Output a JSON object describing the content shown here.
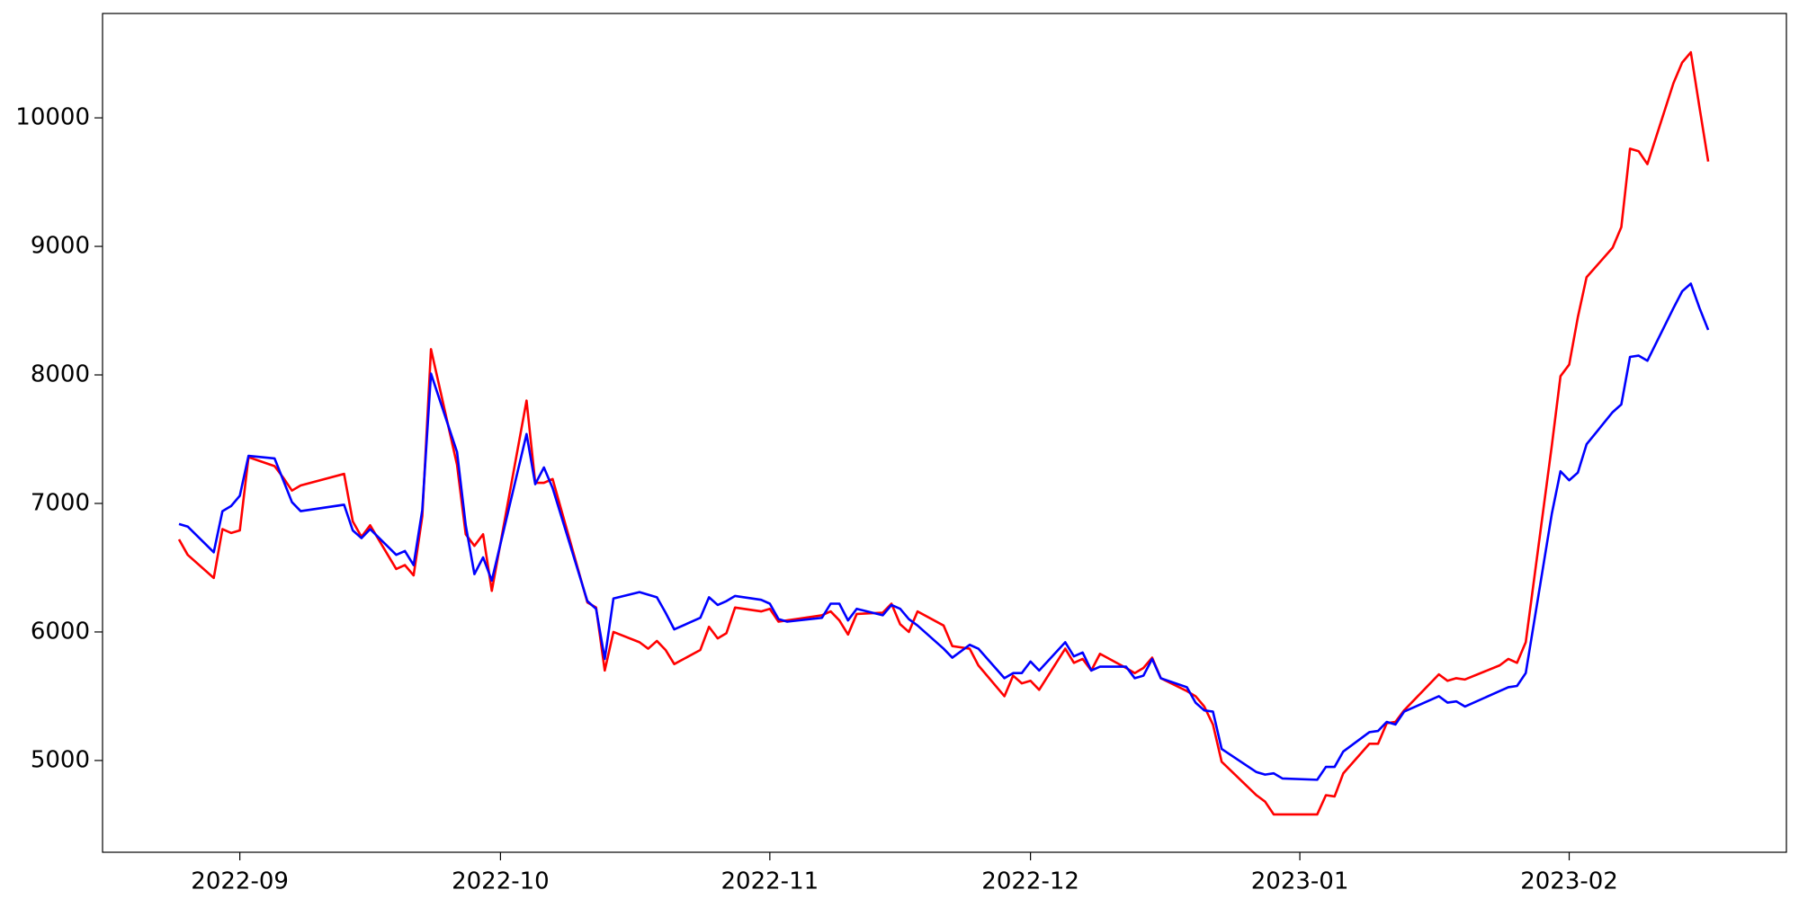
{
  "chart_data": {
    "type": "line",
    "x": [
      19229,
      19230,
      19233,
      19234,
      19235,
      19236,
      19237,
      19240,
      19241,
      19242,
      19243,
      19248,
      19249,
      19250,
      19251,
      19254,
      19255,
      19256,
      19257,
      19258,
      19261,
      19262,
      19263,
      19264,
      19265,
      19269,
      19270,
      19271,
      19272,
      19276,
      19277,
      19278,
      19279,
      19282,
      19283,
      19284,
      19285,
      19286,
      19289,
      19290,
      19291,
      19292,
      19293,
      19296,
      19297,
      19298,
      19299,
      19303,
      19304,
      19305,
      19306,
      19307,
      19310,
      19311,
      19312,
      19313,
      19314,
      19317,
      19318,
      19319,
      19320,
      19321,
      19324,
      19325,
      19326,
      19327,
      19328,
      19331,
      19332,
      19333,
      19334,
      19335,
      19338,
      19339,
      19340,
      19341,
      19342,
      19345,
      19346,
      19347,
      19348,
      19349,
      19353,
      19354,
      19355,
      19356,
      19360,
      19361,
      19362,
      19363,
      19366,
      19367,
      19368,
      19369,
      19370,
      19374,
      19375,
      19376,
      19377,
      19381,
      19382,
      19383,
      19384,
      19387,
      19388,
      19389,
      19390,
      19391,
      19394,
      19395,
      19396,
      19397,
      19398,
      19401,
      19402,
      19403,
      19404,
      19405
    ],
    "series": [
      {
        "color": "#ff0000",
        "values": [
          6720,
          6600,
          6420,
          6800,
          6770,
          6790,
          7360,
          7290,
          7200,
          7100,
          7140,
          7230,
          6860,
          6740,
          6830,
          6490,
          6520,
          6440,
          6900,
          8200,
          7300,
          6760,
          6670,
          6760,
          6320,
          7800,
          7160,
          7160,
          7190,
          6230,
          6190,
          5700,
          6000,
          5920,
          5870,
          5930,
          5860,
          5750,
          5860,
          6040,
          5950,
          5990,
          6190,
          6160,
          6180,
          6080,
          6090,
          6130,
          6160,
          6090,
          5980,
          6140,
          6150,
          6220,
          6060,
          6000,
          6160,
          6050,
          5890,
          5880,
          5870,
          5740,
          5500,
          5660,
          5600,
          5620,
          5550,
          5870,
          5760,
          5790,
          5700,
          5830,
          5720,
          5680,
          5720,
          5800,
          5640,
          5540,
          5500,
          5420,
          5280,
          4990,
          4730,
          4680,
          4580,
          4580,
          4580,
          4730,
          4720,
          4900,
          5130,
          5130,
          5290,
          5300,
          5390,
          5670,
          5620,
          5640,
          5630,
          5740,
          5790,
          5760,
          5920,
          7450,
          7990,
          8080,
          8450,
          8760,
          8990,
          9150,
          9760,
          9740,
          9640,
          10270,
          10430,
          10510,
          10080,
          9660
        ]
      },
      {
        "color": "#0000ff",
        "values": [
          6840,
          6820,
          6620,
          6940,
          6980,
          7060,
          7370,
          7350,
          7180,
          7010,
          6940,
          6990,
          6790,
          6730,
          6800,
          6600,
          6630,
          6520,
          6950,
          8010,
          7400,
          6830,
          6450,
          6580,
          6400,
          7540,
          7150,
          7280,
          7120,
          6240,
          6180,
          5790,
          6260,
          6310,
          6290,
          6270,
          6150,
          6020,
          6110,
          6270,
          6210,
          6240,
          6280,
          6250,
          6220,
          6100,
          6080,
          6110,
          6220,
          6220,
          6090,
          6180,
          6130,
          6210,
          6180,
          6100,
          6050,
          5870,
          5800,
          5850,
          5900,
          5870,
          5640,
          5680,
          5680,
          5770,
          5700,
          5920,
          5810,
          5840,
          5700,
          5730,
          5730,
          5640,
          5660,
          5790,
          5640,
          5570,
          5450,
          5390,
          5380,
          5090,
          4910,
          4890,
          4900,
          4860,
          4850,
          4950,
          4950,
          5070,
          5220,
          5230,
          5300,
          5280,
          5380,
          5500,
          5450,
          5460,
          5420,
          5540,
          5570,
          5580,
          5680,
          6920,
          7250,
          7180,
          7240,
          7460,
          7710,
          7770,
          8140,
          8150,
          8110,
          8520,
          8650,
          8710,
          8520,
          8350
        ]
      }
    ],
    "xlim": [
      19220.2,
      19414
    ],
    "ylim": [
      4286,
      10812
    ],
    "xticks": [
      {
        "value": 19236,
        "label": "2022-09"
      },
      {
        "value": 19266,
        "label": "2022-10"
      },
      {
        "value": 19297,
        "label": "2022-11"
      },
      {
        "value": 19327,
        "label": "2022-12"
      },
      {
        "value": 19358,
        "label": "2023-01"
      },
      {
        "value": 19389,
        "label": "2023-02"
      }
    ],
    "yticks": [
      5000,
      6000,
      7000,
      8000,
      9000,
      10000
    ]
  }
}
